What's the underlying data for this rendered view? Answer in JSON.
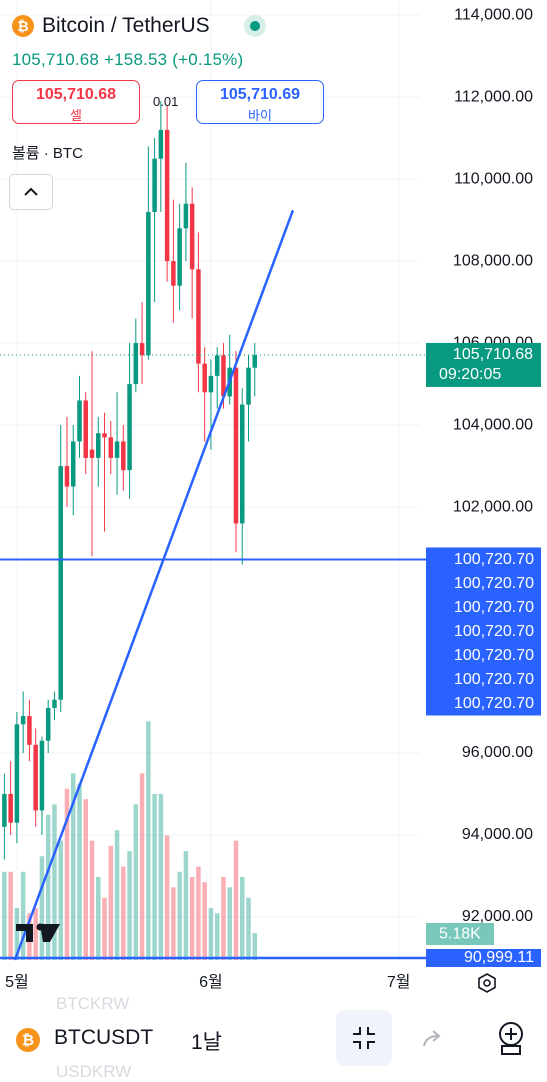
{
  "header": {
    "title": "Bitcoin / TetherUS",
    "quote": "105,710.68 +158.53 (+0.15%)",
    "sell_price": "105,710.68",
    "sell_label": "셀",
    "buy_price": "105,710.69",
    "buy_label": "바이",
    "spread": "0.01",
    "volume_label": "볼륨 · BTC"
  },
  "chart_data": {
    "type": "candlestick",
    "xlim": [
      -0.7,
      66.4
    ],
    "xticks": [
      {
        "value": 2,
        "label": "5월"
      },
      {
        "value": 33,
        "label": "6월"
      },
      {
        "value": 63,
        "label": "7월"
      }
    ],
    "ylim": [
      90950,
      114370
    ],
    "yticks": [
      {
        "value": 92000,
        "label": "92,000.00"
      },
      {
        "value": 94000,
        "label": "94,000.00"
      },
      {
        "value": 96000,
        "label": "96,000.00"
      },
      {
        "value": 102000,
        "label": "102,000.00"
      },
      {
        "value": 104000,
        "label": "104,000.00"
      },
      {
        "value": 106000,
        "label": "106,000.00"
      },
      {
        "value": 108000,
        "label": "108,000.00"
      },
      {
        "value": 110000,
        "label": "110,000.00"
      },
      {
        "value": 112000,
        "label": "112,000.00"
      },
      {
        "value": 114000,
        "label": "114,000.00"
      }
    ],
    "grid": true,
    "up_color": "#089981",
    "down_color": "#f23645",
    "candles": [
      [
        94200,
        95500,
        93400,
        95000
      ],
      [
        95000,
        95800,
        94000,
        94300
      ],
      [
        94300,
        97000,
        93800,
        96700
      ],
      [
        96700,
        97500,
        96000,
        96900
      ],
      [
        96900,
        97300,
        95800,
        96200
      ],
      [
        96200,
        96600,
        94200,
        94600
      ],
      [
        94600,
        96400,
        94000,
        96300
      ],
      [
        96300,
        97300,
        96000,
        97100
      ],
      [
        97100,
        97500,
        96800,
        97300
      ],
      [
        97300,
        104000,
        97000,
        103000
      ],
      [
        103000,
        104200,
        102000,
        102500
      ],
      [
        102500,
        104000,
        101800,
        103600
      ],
      [
        103600,
        105200,
        103200,
        104600
      ],
      [
        104600,
        104800,
        102800,
        103200
      ],
      [
        103400,
        105800,
        100800,
        103200
      ],
      [
        103200,
        104200,
        102500,
        103800
      ],
      [
        103800,
        104300,
        101400,
        103700
      ],
      [
        103700,
        104100,
        102800,
        103200
      ],
      [
        103200,
        104800,
        102300,
        103600
      ],
      [
        103600,
        104000,
        102400,
        102900
      ],
      [
        102900,
        106000,
        102200,
        105000
      ],
      [
        105000,
        106600,
        104800,
        106000
      ],
      [
        106000,
        107000,
        105000,
        105700
      ],
      [
        105700,
        110800,
        105600,
        109200
      ],
      [
        109200,
        111000,
        107000,
        110500
      ],
      [
        110500,
        111900,
        109200,
        111200
      ],
      [
        111200,
        111800,
        107500,
        108000
      ],
      [
        108000,
        109500,
        106500,
        107400
      ],
      [
        107400,
        109400,
        106800,
        108800
      ],
      [
        108800,
        110400,
        108000,
        109400
      ],
      [
        109400,
        109800,
        106600,
        107800
      ],
      [
        107800,
        108700,
        104800,
        105500
      ],
      [
        105500,
        105900,
        103600,
        104800
      ],
      [
        104800,
        105600,
        103400,
        105200
      ],
      [
        105200,
        105900,
        104400,
        105700
      ],
      [
        105700,
        106000,
        104400,
        104700
      ],
      [
        104700,
        106200,
        104500,
        105400
      ],
      [
        105400,
        105800,
        100900,
        101600
      ],
      [
        101600,
        104900,
        100600,
        104500
      ],
      [
        104500,
        105700,
        103600,
        105400
      ],
      [
        105400,
        106000,
        104700,
        105710.68
      ]
    ],
    "volume_ylim": [
      0,
      185
    ],
    "volumes": [
      17,
      17,
      10,
      17,
      9,
      10,
      20,
      28,
      30,
      23,
      33,
      36,
      34,
      31,
      23,
      16,
      12,
      22,
      25,
      18,
      21,
      30,
      36,
      46,
      32,
      32,
      24,
      14,
      17,
      21,
      16,
      18,
      15,
      10,
      9,
      16,
      14,
      23,
      16,
      12,
      5.18
    ],
    "last_volume_label": "5.18K",
    "last_price": {
      "value": 105710.68,
      "label": "105,710.68"
    },
    "countdown": "09:20:05",
    "alert_lines": [
      {
        "value": 100720.7,
        "label": "100,720.70"
      },
      {
        "value": 100720.7,
        "label": "100,720.70"
      },
      {
        "value": 100720.7,
        "label": "100,720.70"
      },
      {
        "value": 100720.7,
        "label": "100,720.70"
      },
      {
        "value": 100720.7,
        "label": "100,720.70"
      },
      {
        "value": 100720.7,
        "label": "100,720.70"
      },
      {
        "value": 100720.7,
        "label": "100,720.70"
      }
    ],
    "alert_color": "#2962ff",
    "support_line": {
      "value": 90999.11,
      "label": "90,999.11"
    },
    "trend_line": {
      "x": [
        1.68,
        46.1
      ],
      "y": [
        90950,
        109240
      ]
    }
  },
  "bottom_bar": {
    "symbol": "BTCUSDT",
    "interval": "1날",
    "ghost_top": "BTCKRW",
    "ghost_bottom": "USDKRW"
  }
}
